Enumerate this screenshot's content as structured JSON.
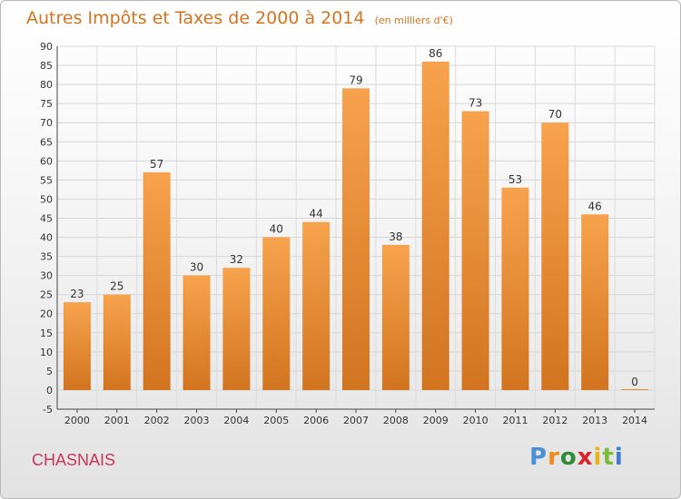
{
  "chart_data": {
    "type": "bar",
    "title": "Autres Impôts et Taxes de 2000 à 2014",
    "subtitle": "(en milliers d'€)",
    "categories": [
      "2000",
      "2001",
      "2002",
      "2003",
      "2004",
      "2005",
      "2006",
      "2007",
      "2008",
      "2009",
      "2010",
      "2011",
      "2012",
      "2013",
      "2014"
    ],
    "values": [
      23,
      25,
      57,
      30,
      32,
      40,
      44,
      79,
      38,
      86,
      73,
      53,
      70,
      46,
      0
    ],
    "ylim": [
      -5,
      90
    ],
    "yticks": [
      -5,
      0,
      5,
      10,
      15,
      20,
      25,
      30,
      35,
      40,
      45,
      50,
      55,
      60,
      65,
      70,
      75,
      80,
      85,
      90
    ],
    "grid": true,
    "bar_color_top": "#f7a24d",
    "bar_color_bottom": "#d2741f"
  },
  "footer": {
    "place": "CHASNAIS",
    "brand": "Proxiti",
    "brand_colors": [
      "#4a90d9",
      "#f08a1c",
      "#2e8b3a",
      "#d8252d",
      "#e8b21a",
      "#7bbb3a",
      "#3e7fcf"
    ]
  }
}
